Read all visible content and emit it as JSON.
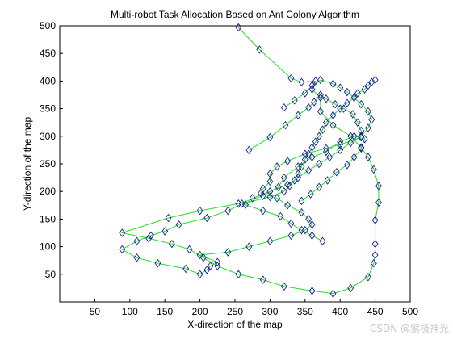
{
  "chart_data": {
    "type": "line",
    "title": "Multi-robot Task Allocation Based on Ant Colony Algorithm",
    "xlabel": "X-direction of the map",
    "ylabel": "Y-direction of the map",
    "xlim": [
      0,
      500
    ],
    "ylim": [
      0,
      500
    ],
    "xticks": [
      50,
      100,
      150,
      200,
      250,
      300,
      350,
      400,
      450,
      500
    ],
    "yticks": [
      50,
      100,
      150,
      200,
      250,
      300,
      350,
      400,
      450,
      500
    ],
    "grid": false,
    "marker": "diamond",
    "colors": {
      "line": "#22dd22",
      "marker": "#1a1aa0"
    },
    "series": [
      {
        "x": [
          255,
          285,
          330,
          345,
          365,
          360,
          372,
          372,
          390,
          415,
          430,
          440,
          448,
          455,
          455,
          450,
          450,
          450,
          448,
          440,
          415,
          390,
          360,
          320,
          290,
          255,
          225,
          205,
          185,
          160,
          127,
          89,
          155,
          200,
          255,
          290,
          312,
          320,
          340,
          360,
          380,
          400,
          420,
          430,
          400,
          380,
          350,
          325,
          310,
          300,
          300,
          290,
          287,
          310,
          325,
          345,
          355,
          360,
          350,
          330,
          300,
          270,
          240,
          200,
          225,
          215,
          210,
          200,
          180,
          140,
          110,
          89,
          110,
          130,
          150,
          170,
          210,
          240,
          260,
          300,
          320,
          328,
          335,
          340,
          345,
          350,
          355,
          360,
          365,
          370,
          375,
          380,
          390,
          400,
          410,
          420,
          425,
          435,
          440,
          445,
          450
        ],
        "y": [
          497,
          457,
          405,
          398,
          400,
          385,
          370,
          345,
          320,
          300,
          280,
          262,
          240,
          210,
          180,
          148,
          105,
          85,
          70,
          45,
          25,
          15,
          20,
          28,
          40,
          50,
          65,
          80,
          95,
          105,
          115,
          125,
          152,
          165,
          178,
          192,
          208,
          225,
          245,
          262,
          272,
          290,
          300,
          298,
          285,
          278,
          268,
          255,
          245,
          232,
          218,
          205,
          197,
          188,
          175,
          162,
          150,
          140,
          130,
          120,
          110,
          100,
          90,
          85,
          72,
          65,
          58,
          50,
          60,
          70,
          80,
          95,
          110,
          120,
          128,
          140,
          152,
          165,
          178,
          190,
          200,
          210,
          220,
          232,
          245,
          258,
          268,
          280,
          290,
          300,
          312,
          325,
          338,
          350,
          360,
          370,
          378,
          385,
          392,
          398,
          402
        ]
      },
      {
        "x": [
          320,
          335,
          350,
          360,
          372,
          390,
          400,
          410,
          420,
          430,
          440,
          445,
          440,
          430,
          415,
          400,
          385,
          370,
          355,
          340,
          325,
          300,
          275,
          265,
          290,
          315,
          330,
          345,
          360,
          375
        ],
        "y": [
          352,
          365,
          378,
          392,
          402,
          395,
          388,
          380,
          370,
          358,
          345,
          330,
          315,
          300,
          288,
          275,
          262,
          250,
          238,
          225,
          212,
          200,
          188,
          176,
          165,
          155,
          142,
          130,
          120,
          110
        ]
      },
      {
        "x": [
          270,
          300,
          322,
          340,
          355,
          363,
          372,
          380,
          393,
          405,
          418,
          425,
          430,
          435,
          430,
          420,
          410,
          395,
          382,
          370,
          358,
          345
        ],
        "y": [
          275,
          298,
          320,
          338,
          352,
          362,
          375,
          368,
          358,
          350,
          340,
          325,
          310,
          295,
          278,
          262,
          248,
          235,
          220,
          208,
          195,
          183
        ]
      }
    ]
  },
  "watermark": "CSDN @紫极神光"
}
